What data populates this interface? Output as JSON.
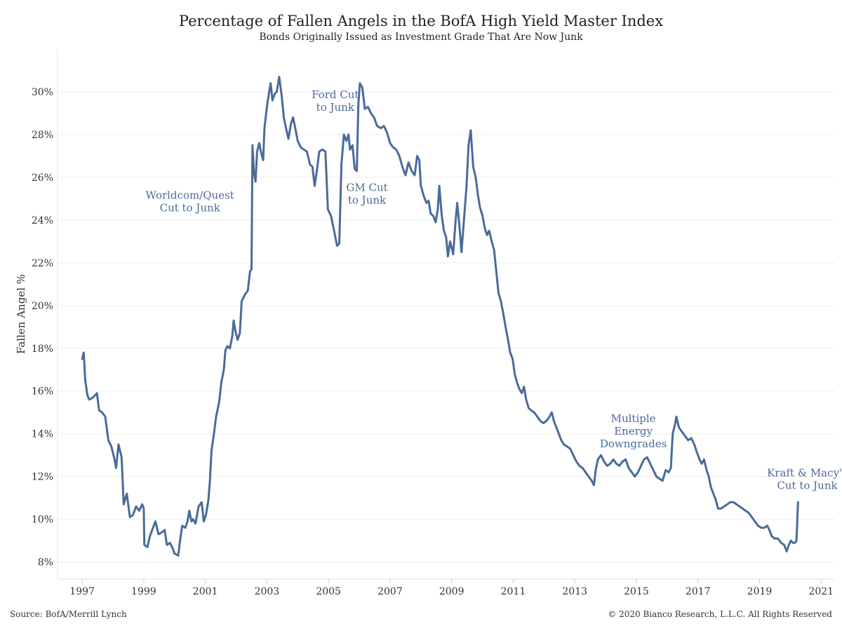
{
  "chart_data": {
    "type": "line",
    "title": "Percentage of Fallen Angels in the BofA High Yield Master Index",
    "subtitle": "Bonds Originally Issued as Investment Grade That Are Now Junk",
    "ylabel": "Fallen Angel %",
    "xlabel": "",
    "xlim": [
      1996.2,
      2021.45
    ],
    "ylim": [
      7.2,
      32.0
    ],
    "x_ticks": [
      1997,
      1999,
      2001,
      2003,
      2005,
      2007,
      2009,
      2011,
      2013,
      2015,
      2017,
      2019,
      2021
    ],
    "x_tick_labels": [
      "1997",
      "1999",
      "2001",
      "2003",
      "2005",
      "2007",
      "2009",
      "2011",
      "2013",
      "2015",
      "2017",
      "2019",
      "2021"
    ],
    "y_ticks": [
      8,
      10,
      12,
      14,
      16,
      18,
      20,
      22,
      24,
      26,
      28,
      30
    ],
    "y_tick_labels": [
      "8%",
      "10%",
      "12%",
      "14%",
      "16%",
      "18%",
      "20%",
      "22%",
      "24%",
      "26%",
      "28%",
      "30%"
    ],
    "grid": "horizontal",
    "line_color": "#4a6b99",
    "series": [
      {
        "name": "",
        "points": [
          [
            1997.0,
            17.5
          ],
          [
            1997.05,
            17.8
          ],
          [
            1997.1,
            16.5
          ],
          [
            1997.17,
            15.8
          ],
          [
            1997.23,
            15.6
          ],
          [
            1997.35,
            15.7
          ],
          [
            1997.48,
            15.9
          ],
          [
            1997.55,
            15.1
          ],
          [
            1997.65,
            15.0
          ],
          [
            1997.75,
            14.8
          ],
          [
            1997.85,
            13.7
          ],
          [
            1997.95,
            13.4
          ],
          [
            1998.05,
            12.8
          ],
          [
            1998.1,
            12.4
          ],
          [
            1998.18,
            13.5
          ],
          [
            1998.28,
            12.9
          ],
          [
            1998.35,
            10.7
          ],
          [
            1998.45,
            11.2
          ],
          [
            1998.55,
            10.1
          ],
          [
            1998.65,
            10.2
          ],
          [
            1998.75,
            10.6
          ],
          [
            1998.85,
            10.4
          ],
          [
            1998.95,
            10.7
          ],
          [
            1999.0,
            10.5
          ],
          [
            1999.02,
            8.8
          ],
          [
            1999.12,
            8.7
          ],
          [
            1999.2,
            9.2
          ],
          [
            1999.3,
            9.6
          ],
          [
            1999.38,
            9.9
          ],
          [
            1999.48,
            9.3
          ],
          [
            1999.6,
            9.4
          ],
          [
            1999.68,
            9.5
          ],
          [
            1999.75,
            8.8
          ],
          [
            1999.85,
            8.9
          ],
          [
            1999.95,
            8.6
          ],
          [
            2000.0,
            8.4
          ],
          [
            2000.12,
            8.3
          ],
          [
            2000.18,
            9.0
          ],
          [
            2000.25,
            9.7
          ],
          [
            2000.35,
            9.6
          ],
          [
            2000.42,
            9.9
          ],
          [
            2000.48,
            10.4
          ],
          [
            2000.55,
            9.9
          ],
          [
            2000.6,
            10.0
          ],
          [
            2000.68,
            9.8
          ],
          [
            2000.78,
            10.6
          ],
          [
            2000.88,
            10.8
          ],
          [
            2000.95,
            9.9
          ],
          [
            2001.02,
            10.2
          ],
          [
            2001.1,
            10.9
          ],
          [
            2001.15,
            11.8
          ],
          [
            2001.2,
            13.2
          ],
          [
            2001.28,
            14.0
          ],
          [
            2001.35,
            14.8
          ],
          [
            2001.45,
            15.5
          ],
          [
            2001.52,
            16.4
          ],
          [
            2001.6,
            17.0
          ],
          [
            2001.65,
            17.9
          ],
          [
            2001.72,
            18.1
          ],
          [
            2001.8,
            18.0
          ],
          [
            2001.88,
            18.6
          ],
          [
            2001.92,
            19.3
          ],
          [
            2001.98,
            18.8
          ],
          [
            2002.05,
            18.4
          ],
          [
            2002.12,
            18.7
          ],
          [
            2002.18,
            20.2
          ],
          [
            2002.28,
            20.5
          ],
          [
            2002.38,
            20.7
          ],
          [
            2002.45,
            21.6
          ],
          [
            2002.5,
            21.7
          ],
          [
            2002.53,
            27.5
          ],
          [
            2002.58,
            26.2
          ],
          [
            2002.63,
            25.8
          ],
          [
            2002.68,
            27.2
          ],
          [
            2002.75,
            27.6
          ],
          [
            2002.82,
            27.1
          ],
          [
            2002.88,
            26.8
          ],
          [
            2002.92,
            28.3
          ],
          [
            2003.0,
            29.3
          ],
          [
            2003.05,
            29.8
          ],
          [
            2003.12,
            30.4
          ],
          [
            2003.18,
            29.6
          ],
          [
            2003.25,
            29.9
          ],
          [
            2003.32,
            30.0
          ],
          [
            2003.4,
            30.7
          ],
          [
            2003.48,
            29.8
          ],
          [
            2003.55,
            28.8
          ],
          [
            2003.62,
            28.3
          ],
          [
            2003.7,
            27.8
          ],
          [
            2003.78,
            28.5
          ],
          [
            2003.85,
            28.8
          ],
          [
            2003.92,
            28.3
          ],
          [
            2004.0,
            27.7
          ],
          [
            2004.1,
            27.4
          ],
          [
            2004.2,
            27.3
          ],
          [
            2004.3,
            27.2
          ],
          [
            2004.4,
            26.6
          ],
          [
            2004.48,
            26.5
          ],
          [
            2004.55,
            25.6
          ],
          [
            2004.62,
            26.3
          ],
          [
            2004.7,
            27.2
          ],
          [
            2004.8,
            27.3
          ],
          [
            2004.9,
            27.2
          ],
          [
            2004.98,
            24.5
          ],
          [
            2005.08,
            24.2
          ],
          [
            2005.18,
            23.5
          ],
          [
            2005.28,
            22.8
          ],
          [
            2005.35,
            22.9
          ],
          [
            2005.42,
            26.6
          ],
          [
            2005.5,
            28.0
          ],
          [
            2005.58,
            27.7
          ],
          [
            2005.65,
            28.0
          ],
          [
            2005.7,
            27.3
          ],
          [
            2005.78,
            27.5
          ],
          [
            2005.85,
            26.4
          ],
          [
            2005.92,
            26.3
          ],
          [
            2005.97,
            29.4
          ],
          [
            2006.02,
            30.4
          ],
          [
            2006.1,
            30.2
          ],
          [
            2006.18,
            29.2
          ],
          [
            2006.28,
            29.3
          ],
          [
            2006.38,
            29.0
          ],
          [
            2006.48,
            28.8
          ],
          [
            2006.58,
            28.4
          ],
          [
            2006.7,
            28.3
          ],
          [
            2006.8,
            28.4
          ],
          [
            2006.9,
            28.1
          ],
          [
            2007.0,
            27.6
          ],
          [
            2007.1,
            27.4
          ],
          [
            2007.2,
            27.3
          ],
          [
            2007.3,
            27.0
          ],
          [
            2007.4,
            26.5
          ],
          [
            2007.5,
            26.1
          ],
          [
            2007.6,
            26.7
          ],
          [
            2007.7,
            26.3
          ],
          [
            2007.8,
            26.1
          ],
          [
            2007.88,
            27.0
          ],
          [
            2007.95,
            26.8
          ],
          [
            2008.0,
            25.6
          ],
          [
            2008.1,
            25.1
          ],
          [
            2008.18,
            24.8
          ],
          [
            2008.25,
            24.9
          ],
          [
            2008.32,
            24.3
          ],
          [
            2008.4,
            24.2
          ],
          [
            2008.48,
            23.9
          ],
          [
            2008.55,
            24.5
          ],
          [
            2008.6,
            25.6
          ],
          [
            2008.68,
            24.2
          ],
          [
            2008.75,
            23.5
          ],
          [
            2008.82,
            23.2
          ],
          [
            2008.88,
            22.3
          ],
          [
            2008.95,
            23.0
          ],
          [
            2009.05,
            22.4
          ],
          [
            2009.12,
            23.8
          ],
          [
            2009.18,
            24.8
          ],
          [
            2009.25,
            23.8
          ],
          [
            2009.32,
            22.5
          ],
          [
            2009.4,
            24.0
          ],
          [
            2009.48,
            25.5
          ],
          [
            2009.55,
            27.5
          ],
          [
            2009.62,
            28.2
          ],
          [
            2009.7,
            26.5
          ],
          [
            2009.78,
            26.0
          ],
          [
            2009.85,
            25.2
          ],
          [
            2009.92,
            24.6
          ],
          [
            2010.0,
            24.2
          ],
          [
            2010.08,
            23.6
          ],
          [
            2010.15,
            23.3
          ],
          [
            2010.22,
            23.5
          ],
          [
            2010.3,
            23.0
          ],
          [
            2010.38,
            22.6
          ],
          [
            2010.45,
            21.6
          ],
          [
            2010.52,
            20.6
          ],
          [
            2010.6,
            20.2
          ],
          [
            2010.68,
            19.6
          ],
          [
            2010.75,
            19.0
          ],
          [
            2010.82,
            18.5
          ],
          [
            2010.9,
            17.8
          ],
          [
            2010.98,
            17.5
          ],
          [
            2011.05,
            16.8
          ],
          [
            2011.12,
            16.4
          ],
          [
            2011.2,
            16.1
          ],
          [
            2011.28,
            15.9
          ],
          [
            2011.35,
            16.2
          ],
          [
            2011.42,
            15.6
          ],
          [
            2011.5,
            15.2
          ],
          [
            2011.58,
            15.1
          ],
          [
            2011.68,
            15.0
          ],
          [
            2011.78,
            14.8
          ],
          [
            2011.88,
            14.6
          ],
          [
            2011.98,
            14.5
          ],
          [
            2012.08,
            14.6
          ],
          [
            2012.18,
            14.8
          ],
          [
            2012.25,
            15.0
          ],
          [
            2012.32,
            14.6
          ],
          [
            2012.4,
            14.3
          ],
          [
            2012.48,
            14.0
          ],
          [
            2012.56,
            13.7
          ],
          [
            2012.65,
            13.5
          ],
          [
            2012.75,
            13.4
          ],
          [
            2012.85,
            13.3
          ],
          [
            2012.95,
            13.0
          ],
          [
            2013.05,
            12.7
          ],
          [
            2013.15,
            12.5
          ],
          [
            2013.25,
            12.4
          ],
          [
            2013.35,
            12.2
          ],
          [
            2013.45,
            12.0
          ],
          [
            2013.55,
            11.8
          ],
          [
            2013.62,
            11.6
          ],
          [
            2013.68,
            12.3
          ],
          [
            2013.75,
            12.8
          ],
          [
            2013.85,
            13.0
          ],
          [
            2013.95,
            12.7
          ],
          [
            2014.05,
            12.5
          ],
          [
            2014.15,
            12.6
          ],
          [
            2014.25,
            12.8
          ],
          [
            2014.35,
            12.6
          ],
          [
            2014.45,
            12.5
          ],
          [
            2014.55,
            12.7
          ],
          [
            2014.65,
            12.8
          ],
          [
            2014.75,
            12.4
          ],
          [
            2014.85,
            12.2
          ],
          [
            2014.95,
            12.0
          ],
          [
            2015.05,
            12.2
          ],
          [
            2015.15,
            12.5
          ],
          [
            2015.25,
            12.8
          ],
          [
            2015.35,
            12.9
          ],
          [
            2015.45,
            12.6
          ],
          [
            2015.55,
            12.3
          ],
          [
            2015.65,
            12.0
          ],
          [
            2015.75,
            11.9
          ],
          [
            2015.85,
            11.8
          ],
          [
            2015.95,
            12.3
          ],
          [
            2016.05,
            12.2
          ],
          [
            2016.12,
            12.4
          ],
          [
            2016.18,
            14.0
          ],
          [
            2016.25,
            14.4
          ],
          [
            2016.3,
            14.8
          ],
          [
            2016.38,
            14.3
          ],
          [
            2016.48,
            14.1
          ],
          [
            2016.58,
            13.9
          ],
          [
            2016.68,
            13.7
          ],
          [
            2016.78,
            13.8
          ],
          [
            2016.88,
            13.5
          ],
          [
            2016.95,
            13.2
          ],
          [
            2017.05,
            12.8
          ],
          [
            2017.12,
            12.6
          ],
          [
            2017.2,
            12.8
          ],
          [
            2017.28,
            12.3
          ],
          [
            2017.35,
            12.0
          ],
          [
            2017.42,
            11.5
          ],
          [
            2017.5,
            11.2
          ],
          [
            2017.58,
            10.9
          ],
          [
            2017.65,
            10.5
          ],
          [
            2017.75,
            10.5
          ],
          [
            2017.85,
            10.6
          ],
          [
            2017.95,
            10.7
          ],
          [
            2018.05,
            10.8
          ],
          [
            2018.15,
            10.8
          ],
          [
            2018.25,
            10.7
          ],
          [
            2018.35,
            10.6
          ],
          [
            2018.45,
            10.5
          ],
          [
            2018.55,
            10.4
          ],
          [
            2018.65,
            10.3
          ],
          [
            2018.75,
            10.1
          ],
          [
            2018.85,
            9.9
          ],
          [
            2018.95,
            9.7
          ],
          [
            2019.05,
            9.6
          ],
          [
            2019.15,
            9.6
          ],
          [
            2019.25,
            9.7
          ],
          [
            2019.32,
            9.5
          ],
          [
            2019.4,
            9.2
          ],
          [
            2019.5,
            9.1
          ],
          [
            2019.6,
            9.1
          ],
          [
            2019.7,
            8.9
          ],
          [
            2019.8,
            8.8
          ],
          [
            2019.88,
            8.5
          ],
          [
            2019.95,
            8.8
          ],
          [
            2020.02,
            9.0
          ],
          [
            2020.08,
            8.9
          ],
          [
            2020.15,
            8.9
          ],
          [
            2020.2,
            9.0
          ],
          [
            2020.25,
            10.8
          ]
        ]
      }
    ],
    "annotations": [
      {
        "lines": [
          "Worldcom/Quest",
          "Cut to Junk"
        ],
        "x": 2000.5,
        "y": 25.0
      },
      {
        "lines": [
          "Ford Cut",
          "to Junk"
        ],
        "x": 2005.22,
        "y": 29.7
      },
      {
        "lines": [
          "GM Cut",
          "to Junk"
        ],
        "x": 2006.25,
        "y": 25.35
      },
      {
        "lines": [
          "Multiple",
          "Energy",
          "Downgrades"
        ],
        "x": 2014.9,
        "y": 14.55
      },
      {
        "lines": [
          "Kraft & Macy's",
          "Cut to Junk"
        ],
        "x": 2020.55,
        "y": 12.0
      }
    ]
  },
  "footer": {
    "source": "Source: BofA/Merrill Lynch",
    "copyright": "© 2020 Bianco Research, L.L.C. All Rights Reserved"
  }
}
